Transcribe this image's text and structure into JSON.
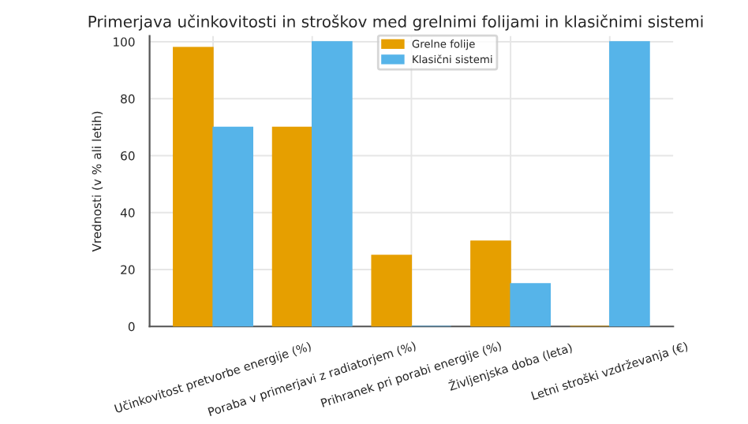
{
  "chart_data": {
    "type": "bar",
    "title": "Primerjava učinkovitosti in stroškov med grelnimi folijami in klasičnimi sistemi",
    "ylabel": "Vrednosti (v % ali letih)",
    "categories": [
      "Učinkovitost pretvorbe energije (%)",
      "Poraba v primerjavi z radiatorjem (%)",
      "Prihranek pri porabi energije (%)",
      "Življenjska doba (leta)",
      "Letni stroški vzdrževanja (€)"
    ],
    "series": [
      {
        "name": "Grelne folije",
        "color": "#e69f00",
        "values": [
          98,
          70,
          25,
          30,
          0
        ]
      },
      {
        "name": "Klasični sistemi",
        "color": "#56b4e9",
        "values": [
          70,
          100,
          0,
          15,
          100
        ]
      }
    ],
    "ylim": [
      0,
      102
    ],
    "yticks": [
      0,
      20,
      40,
      60,
      80,
      100
    ],
    "grid": true,
    "legend": "top"
  }
}
